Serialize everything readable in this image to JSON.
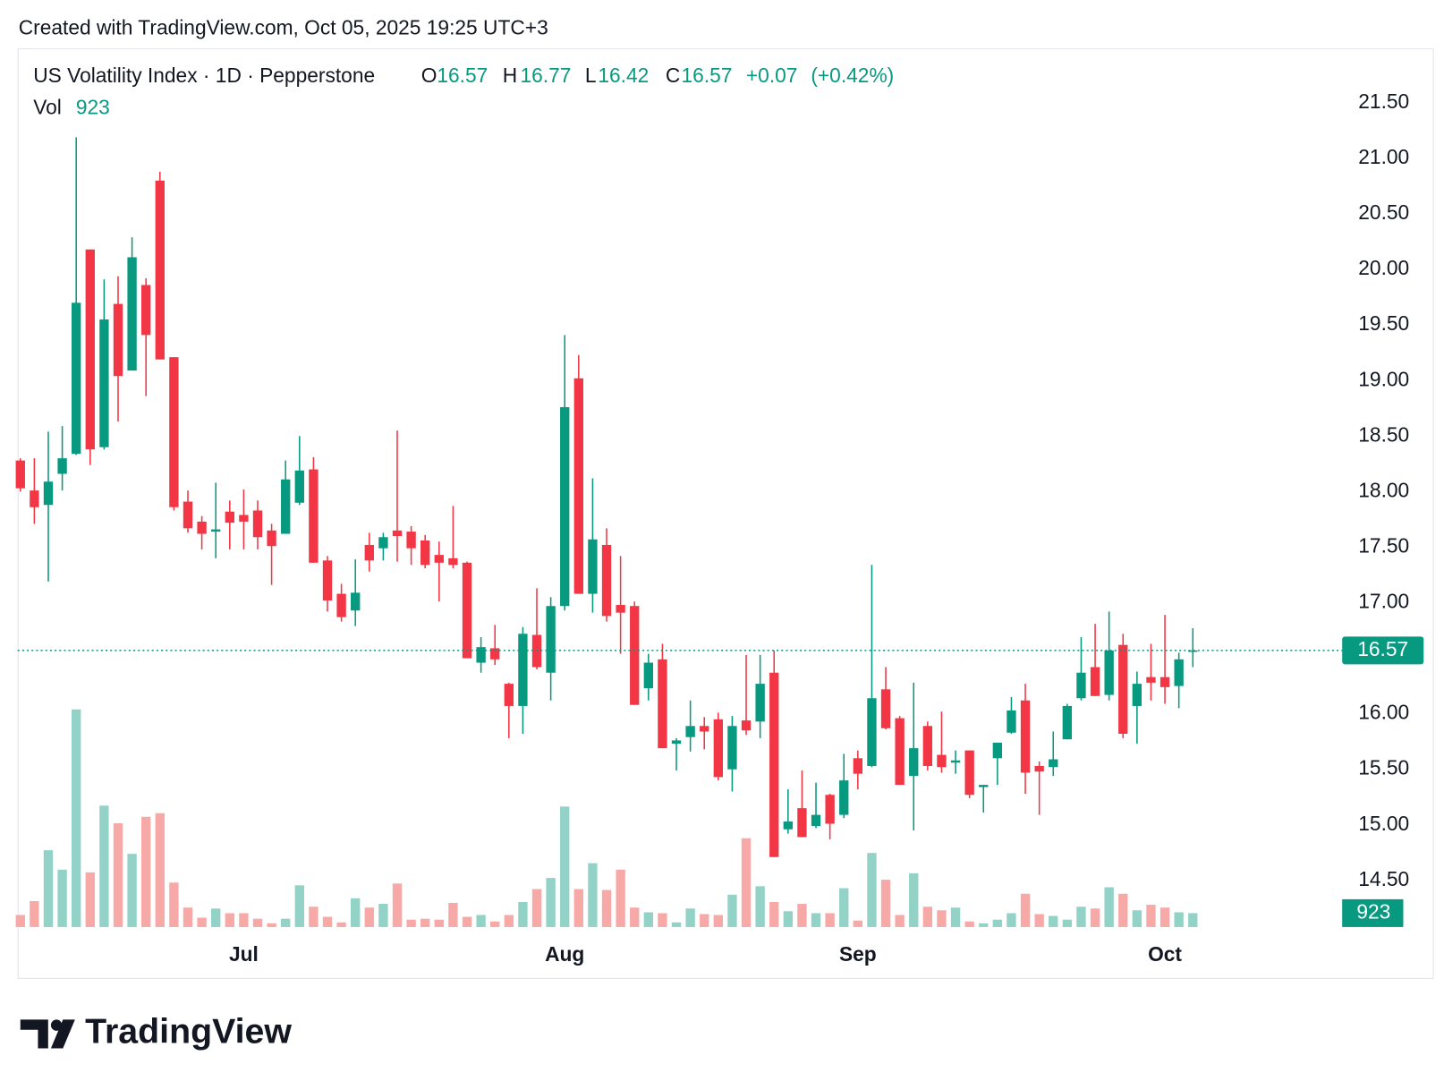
{
  "header": {
    "created": "Created with TradingView.com, Oct 05, 2025 19:25 UTC+3"
  },
  "brand": "TradingView",
  "chart_data": {
    "type": "candlestick",
    "title": "US Volatility Index · 1D · Pepperstone",
    "ohlc_labels": [
      "O",
      "H",
      "L",
      "C"
    ],
    "change": {
      "value": 0.07,
      "label": "+0.07"
    },
    "change_pct": {
      "value": 0.42,
      "label": "(+0.42%)"
    },
    "volume_label": "Vol",
    "colors": {
      "up": "#089981",
      "down": "#f23645",
      "volume_up": "#92d2c7",
      "volume_down": "#f7a9a7"
    },
    "open": [
      18.28,
      18.01,
      17.88,
      18.16,
      18.34,
      20.18,
      18.4,
      19.69,
      19.09,
      19.86,
      20.8,
      19.21,
      17.91,
      17.73,
      17.64,
      17.82,
      17.79,
      17.83,
      17.65,
      17.62,
      17.9,
      18.2,
      17.38,
      17.08,
      16.93,
      17.52,
      17.49,
      17.65,
      17.64,
      17.56,
      17.43,
      17.4,
      17.36,
      16.46,
      16.59,
      16.27,
      16.07,
      16.71,
      16.37,
      16.97,
      19.02,
      17.08,
      17.52,
      16.98,
      16.97,
      16.23,
      16.49,
      15.73,
      15.79,
      15.89,
      15.95,
      15.5,
      15.94,
      15.93,
      16.37,
      14.96,
      15.15,
      14.99,
      15.27,
      15.09,
      15.6,
      15.53,
      16.22,
      15.96,
      15.44,
      15.89,
      15.63,
      15.56,
      15.67,
      15.34,
      15.6,
      15.83,
      16.12,
      15.53,
      15.52,
      15.77,
      16.14,
      16.42,
      16.17,
      16.62,
      16.07,
      16.33,
      16.33,
      16.25,
      16.57
    ],
    "high": [
      18.3,
      18.3,
      18.54,
      18.59,
      21.19,
      20.18,
      19.91,
      19.94,
      20.29,
      19.92,
      20.88,
      19.21,
      18.01,
      17.78,
      18.08,
      17.92,
      18.02,
      17.92,
      17.71,
      18.28,
      18.5,
      18.31,
      17.42,
      17.17,
      17.39,
      17.63,
      17.63,
      18.55,
      17.69,
      17.61,
      17.55,
      17.87,
      17.37,
      16.69,
      16.8,
      16.28,
      16.78,
      17.13,
      17.05,
      19.41,
      19.23,
      18.12,
      17.67,
      17.42,
      17.01,
      16.54,
      16.63,
      15.78,
      16.12,
      15.97,
      16.01,
      15.98,
      16.53,
      16.53,
      16.57,
      15.32,
      15.49,
      15.38,
      15.28,
      15.64,
      15.67,
      17.34,
      16.42,
      15.98,
      16.28,
      15.93,
      16.02,
      15.67,
      15.67,
      15.36,
      15.74,
      16.15,
      16.27,
      15.57,
      15.84,
      16.09,
      16.69,
      16.81,
      16.92,
      16.72,
      16.38,
      16.63,
      16.89,
      16.55,
      16.77
    ],
    "low": [
      18.0,
      17.71,
      17.19,
      18.01,
      18.33,
      18.24,
      18.38,
      18.63,
      19.09,
      18.86,
      19.19,
      17.83,
      17.63,
      17.48,
      17.4,
      17.48,
      17.48,
      17.48,
      17.16,
      17.62,
      17.88,
      17.36,
      16.92,
      16.83,
      16.79,
      17.28,
      17.38,
      17.37,
      17.34,
      17.31,
      17.01,
      17.31,
      16.5,
      16.37,
      16.44,
      15.78,
      15.82,
      16.4,
      16.12,
      16.93,
      17.08,
      16.91,
      16.83,
      16.54,
      16.08,
      16.12,
      15.69,
      15.49,
      15.66,
      15.68,
      15.4,
      15.3,
      15.81,
      15.78,
      14.71,
      14.92,
      14.89,
      14.97,
      14.87,
      15.06,
      15.32,
      15.52,
      15.86,
      15.36,
      14.95,
      15.49,
      15.47,
      15.46,
      15.24,
      15.11,
      15.36,
      15.82,
      15.28,
      15.09,
      15.44,
      15.77,
      16.12,
      16.16,
      16.12,
      15.78,
      15.73,
      16.12,
      16.09,
      16.05,
      16.42
    ],
    "close": [
      18.03,
      17.86,
      18.09,
      18.3,
      19.7,
      18.38,
      19.55,
      19.04,
      20.11,
      19.41,
      19.19,
      17.86,
      17.67,
      17.62,
      17.66,
      17.72,
      17.73,
      17.59,
      17.51,
      18.11,
      18.19,
      17.36,
      17.02,
      16.87,
      17.09,
      17.38,
      17.59,
      17.6,
      17.49,
      17.34,
      17.36,
      17.34,
      16.5,
      16.6,
      16.49,
      16.07,
      16.72,
      16.42,
      16.97,
      18.76,
      17.08,
      17.57,
      16.88,
      16.91,
      16.08,
      16.46,
      15.69,
      15.76,
      15.89,
      15.84,
      15.43,
      15.89,
      15.85,
      16.27,
      14.71,
      15.03,
      14.89,
      15.09,
      15.01,
      15.4,
      15.46,
      16.14,
      15.87,
      15.36,
      15.69,
      15.53,
      15.52,
      15.58,
      15.27,
      15.36,
      15.74,
      16.03,
      15.47,
      15.48,
      15.59,
      16.07,
      16.37,
      16.16,
      16.57,
      15.82,
      16.27,
      16.28,
      16.24,
      16.49,
      16.57
    ],
    "volumes": [
      800,
      1720,
      5100,
      3810,
      14450,
      3630,
      8060,
      6890,
      4860,
      7320,
      7560,
      2950,
      1290,
      620,
      1230,
      920,
      920,
      550,
      250,
      550,
      2770,
      1350,
      680,
      310,
      1910,
      1290,
      1540,
      2890,
      490,
      550,
      490,
      1600,
      680,
      800,
      370,
      800,
      1660,
      2520,
      3260,
      8000,
      2520,
      4240,
      2460,
      3810,
      1290,
      980,
      920,
      310,
      1230,
      860,
      800,
      2150,
      5900,
      2710,
      1660,
      1050,
      1540,
      920,
      920,
      2580,
      430,
      4920,
      3140,
      800,
      3570,
      1350,
      1110,
      1290,
      370,
      250,
      490,
      920,
      2210,
      860,
      740,
      490,
      1350,
      1230,
      2640,
      2210,
      1110,
      1480,
      1290,
      980,
      923
    ],
    "volume_ylim": [
      0,
      15000
    ],
    "xlim": [
      -0.2,
      94.7
    ],
    "xticks": [
      {
        "value": 16,
        "label": "Jul"
      },
      {
        "value": 39,
        "label": "Aug"
      },
      {
        "value": 60,
        "label": "Sep"
      },
      {
        "value": 82,
        "label": "Oct"
      }
    ],
    "ylim": [
      14.08,
      21.99
    ],
    "yticks": [
      {
        "value": 14.5,
        "label": "14.50"
      },
      {
        "value": 15,
        "label": "15.00"
      },
      {
        "value": 15.5,
        "label": "15.50"
      },
      {
        "value": 16,
        "label": "16.00"
      },
      {
        "value": 16.5,
        "label": "16.50"
      },
      {
        "value": 17,
        "label": "17.00"
      },
      {
        "value": 17.5,
        "label": "17.50"
      },
      {
        "value": 18,
        "label": "18.00"
      },
      {
        "value": 18.5,
        "label": "18.50"
      },
      {
        "value": 19,
        "label": "19.00"
      },
      {
        "value": 19.5,
        "label": "19.50"
      },
      {
        "value": 20,
        "label": "20.00"
      },
      {
        "value": 20.5,
        "label": "20.50"
      },
      {
        "value": 21,
        "label": "21.00"
      },
      {
        "value": 21.5,
        "label": "21.50"
      }
    ],
    "grid": true
  }
}
